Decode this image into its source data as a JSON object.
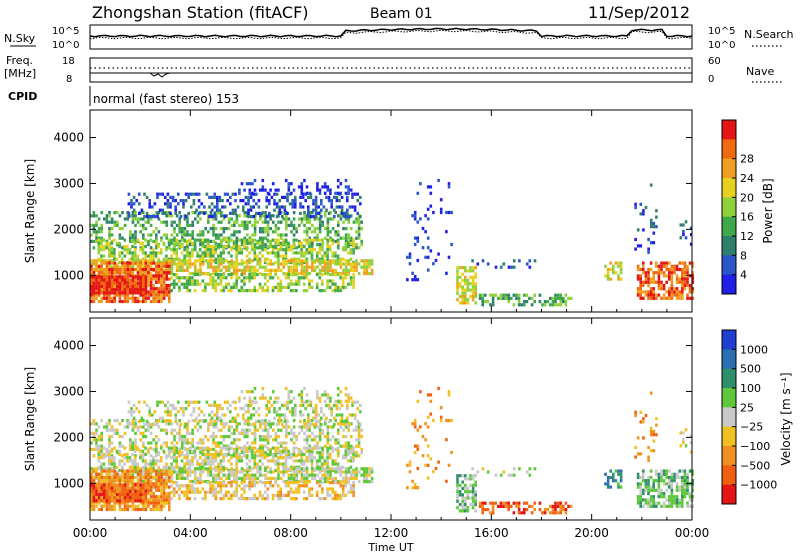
{
  "header": {
    "station": "Zhongshan Station (fitACF)",
    "beam": "Beam 01",
    "date": "11/Sep/2012"
  },
  "strips": {
    "nsky_label": "N.Sky",
    "nsky_ticks": [
      "10^5",
      "10^0"
    ],
    "nsearch_label": "N.Search",
    "nsearch_ticks": [
      "10^5",
      "10^0"
    ],
    "freq_label_1": "Freq.",
    "freq_label_2": "[MHz]",
    "freq_ticks": [
      "18",
      "8"
    ],
    "nave_label": "Nave",
    "nave_ticks": [
      "60",
      "0"
    ],
    "cpid_label": "CPID",
    "cpid_text": "normal (fast stereo) 153"
  },
  "chart_data": [
    {
      "type": "heatmap",
      "name": "Power panel",
      "ylabel": "Slant Range [km]",
      "ylim": [
        200,
        4600
      ],
      "yticks": [
        "1000",
        "2000",
        "3000",
        "4000"
      ],
      "colorbar_label": "Power [dB]",
      "colorbar_ticks": [
        "4",
        "8",
        "12",
        "16",
        "20",
        "24",
        "28"
      ],
      "colors": [
        "#1f1fe6",
        "#2a56c8",
        "#2f7f6e",
        "#3fa84a",
        "#8fd13a",
        "#e8d020",
        "#f0a020",
        "#f06a10",
        "#e61515"
      ]
    },
    {
      "type": "heatmap",
      "name": "Velocity panel",
      "ylabel": "Slant Range [km]",
      "ylim": [
        200,
        4600
      ],
      "yticks": [
        "1000",
        "2000",
        "3000",
        "4000"
      ],
      "colorbar_label": "Velocity [m s⁻¹]",
      "colorbar_ticks": [
        "1000",
        "500",
        "100",
        "25",
        "−25",
        "−100",
        "−500",
        "−1000"
      ],
      "colors": [
        "#1f3fd0",
        "#2a6fb0",
        "#2f8f6a",
        "#5cc83a",
        "#c8c8c8",
        "#f0c020",
        "#f09020",
        "#f06010",
        "#e61515"
      ]
    }
  ],
  "xaxis": {
    "label": "Time UT",
    "ticks": [
      "00:00",
      "04:00",
      "08:00",
      "12:00",
      "16:00",
      "20:00",
      "00:00"
    ]
  }
}
